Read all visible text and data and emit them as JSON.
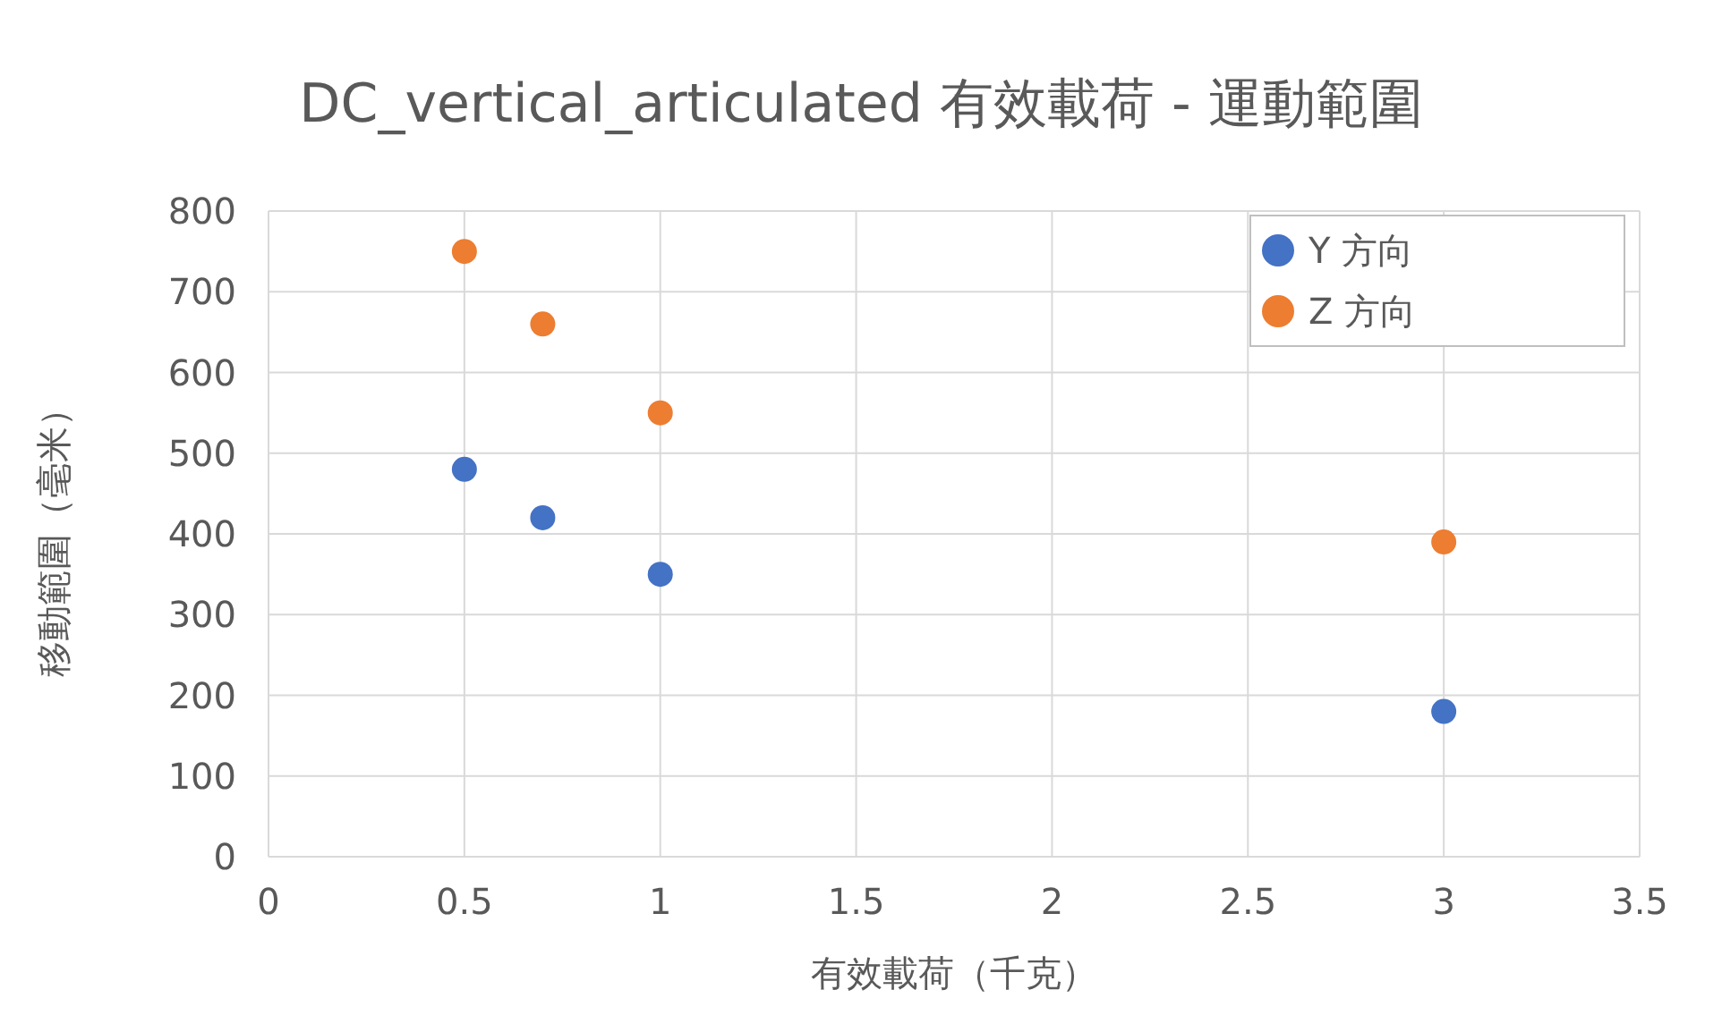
{
  "chart_data": {
    "type": "scatter",
    "title": "DC_vertical_articulated 有效載荷 - 運動範圍",
    "xlabel": "有效載荷（千克）",
    "ylabel": "移動範圍（毫米）",
    "xlim": [
      0,
      3.5
    ],
    "xticks": [
      0,
      0.5,
      1,
      1.5,
      2,
      2.5,
      3,
      3.5
    ],
    "ylim": [
      0,
      800
    ],
    "yticks": [
      0,
      100,
      200,
      300,
      400,
      500,
      600,
      700,
      800
    ],
    "grid": true,
    "legend": "top right",
    "marker": "circle",
    "series": [
      {
        "name": "Y 方向",
        "color": "#4472c4",
        "x": [
          0.5,
          0.7,
          1,
          3
        ],
        "values": [
          480,
          420,
          350,
          180
        ]
      },
      {
        "name": "Z 方向",
        "color": "#ed7d31",
        "x": [
          0.5,
          0.7,
          1,
          3
        ],
        "values": [
          750,
          660,
          550,
          390
        ]
      }
    ]
  }
}
